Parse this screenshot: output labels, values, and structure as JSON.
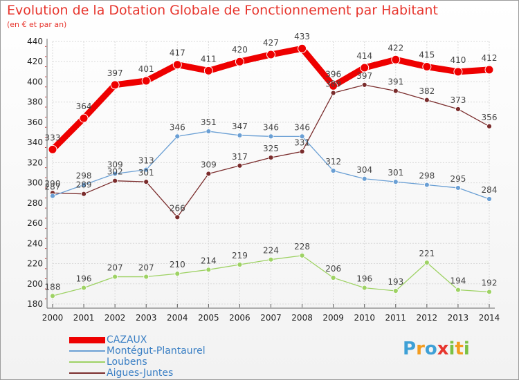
{
  "title": "Evolution de la Dotation Globale de Fonctionnement par Habitant",
  "subtitle": "(en € et par an)",
  "logo": {
    "letters": [
      "P",
      "r",
      "o",
      "x",
      "i",
      "t",
      "i"
    ],
    "colors": [
      "#3ea0d6",
      "#f39c1f",
      "#3ea0d6",
      "#e7352d",
      "#7ac143",
      "#f39c1f",
      "#7ac143"
    ]
  },
  "chart_data": {
    "type": "line",
    "title": "Evolution de la Dotation Globale de Fonctionnement par Habitant",
    "ylabel": "(en € et par an)",
    "xlabel": "",
    "ylim": [
      180,
      440
    ],
    "yticks": [
      180,
      200,
      220,
      240,
      260,
      280,
      300,
      320,
      340,
      360,
      380,
      400,
      420,
      440
    ],
    "grid": true,
    "categories": [
      "2000",
      "2001",
      "2002",
      "2003",
      "2004",
      "2005",
      "2006",
      "2007",
      "2008",
      "2009",
      "2010",
      "2011",
      "2012",
      "2013",
      "2014"
    ],
    "series": [
      {
        "name": "CAZAUX",
        "color": "#ee0000",
        "width": 9,
        "marker_r": 6,
        "values": [
          333,
          364,
          397,
          401,
          417,
          411,
          420,
          427,
          433,
          396,
          414,
          422,
          415,
          410,
          412
        ],
        "labels": [
          "333",
          "364",
          "397",
          "401",
          "417",
          "411",
          "420",
          "427",
          "433",
          "396",
          "414",
          "422",
          "415",
          "410",
          "412"
        ]
      },
      {
        "name": "Montégut-Plantaurel",
        "color": "#6a9fd4",
        "width": 1.3,
        "marker_r": 3.5,
        "values": [
          287,
          298,
          309,
          313,
          346,
          351,
          347,
          346,
          346,
          312,
          304,
          301,
          298,
          295,
          284
        ],
        "labels": [
          "287",
          "298",
          "309",
          "313",
          "346",
          "351",
          "347",
          "346",
          "346",
          "312",
          "304",
          "301",
          "298",
          "295",
          "284"
        ]
      },
      {
        "name": "Loubens",
        "color": "#9ed264",
        "width": 1.3,
        "marker_r": 3.5,
        "values": [
          188,
          196,
          207,
          207,
          210,
          214,
          219,
          224,
          228,
          206,
          196,
          193,
          221,
          194,
          192
        ],
        "labels": [
          "188",
          "196",
          "207",
          "207",
          "210",
          "214",
          "219",
          "224",
          "228",
          "206",
          "196",
          "193",
          "221",
          "194",
          "192"
        ]
      },
      {
        "name": "Aigues-Juntes",
        "color": "#7a2c2c",
        "width": 1.3,
        "marker_r": 3.5,
        "values": [
          290,
          289,
          302,
          301,
          266,
          309,
          317,
          325,
          331,
          389,
          397,
          391,
          382,
          373,
          356
        ],
        "labels": [
          "290",
          "289",
          "302",
          "301",
          "266",
          "309",
          "317",
          "325",
          "331",
          "389",
          "397",
          "391",
          "382",
          "373",
          "356"
        ]
      }
    ]
  },
  "legend": {
    "items": [
      {
        "label": "CAZAUX",
        "color": "#ee0000",
        "thick": 9
      },
      {
        "label": "Montégut-Plantaurel",
        "color": "#6a9fd4",
        "thick": 2
      },
      {
        "label": "Loubens",
        "color": "#9ed264",
        "thick": 2
      },
      {
        "label": "Aigues-Juntes",
        "color": "#7a2c2c",
        "thick": 2
      }
    ]
  }
}
